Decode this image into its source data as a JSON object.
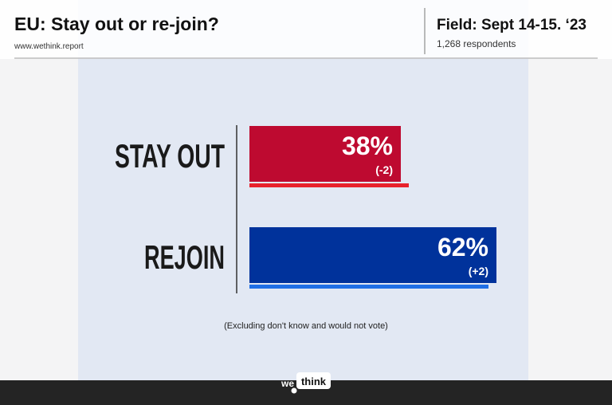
{
  "chart_data": {
    "type": "bar",
    "orientation": "horizontal",
    "title": "EU: Stay out or re-join?",
    "subtitle": "www.wethink.report",
    "field": "Field: Sept 14-15. ‘23",
    "respondents": "1,268 respondents",
    "categories": [
      "STAY OUT",
      "REJOIN"
    ],
    "values": [
      38,
      62
    ],
    "value_labels": [
      "38%",
      "62%"
    ],
    "change_labels": [
      "(-2)",
      "(+2)"
    ],
    "previous_values": [
      40,
      60
    ],
    "colors": [
      "#be0a30",
      "#00329b"
    ],
    "previous_colors": [
      "#e8212b",
      "#1f6fe6"
    ],
    "xlim": [
      0,
      100
    ],
    "note": "(Excluding don't know and would not vote)",
    "logo": {
      "left": "we",
      "right": "think"
    }
  }
}
